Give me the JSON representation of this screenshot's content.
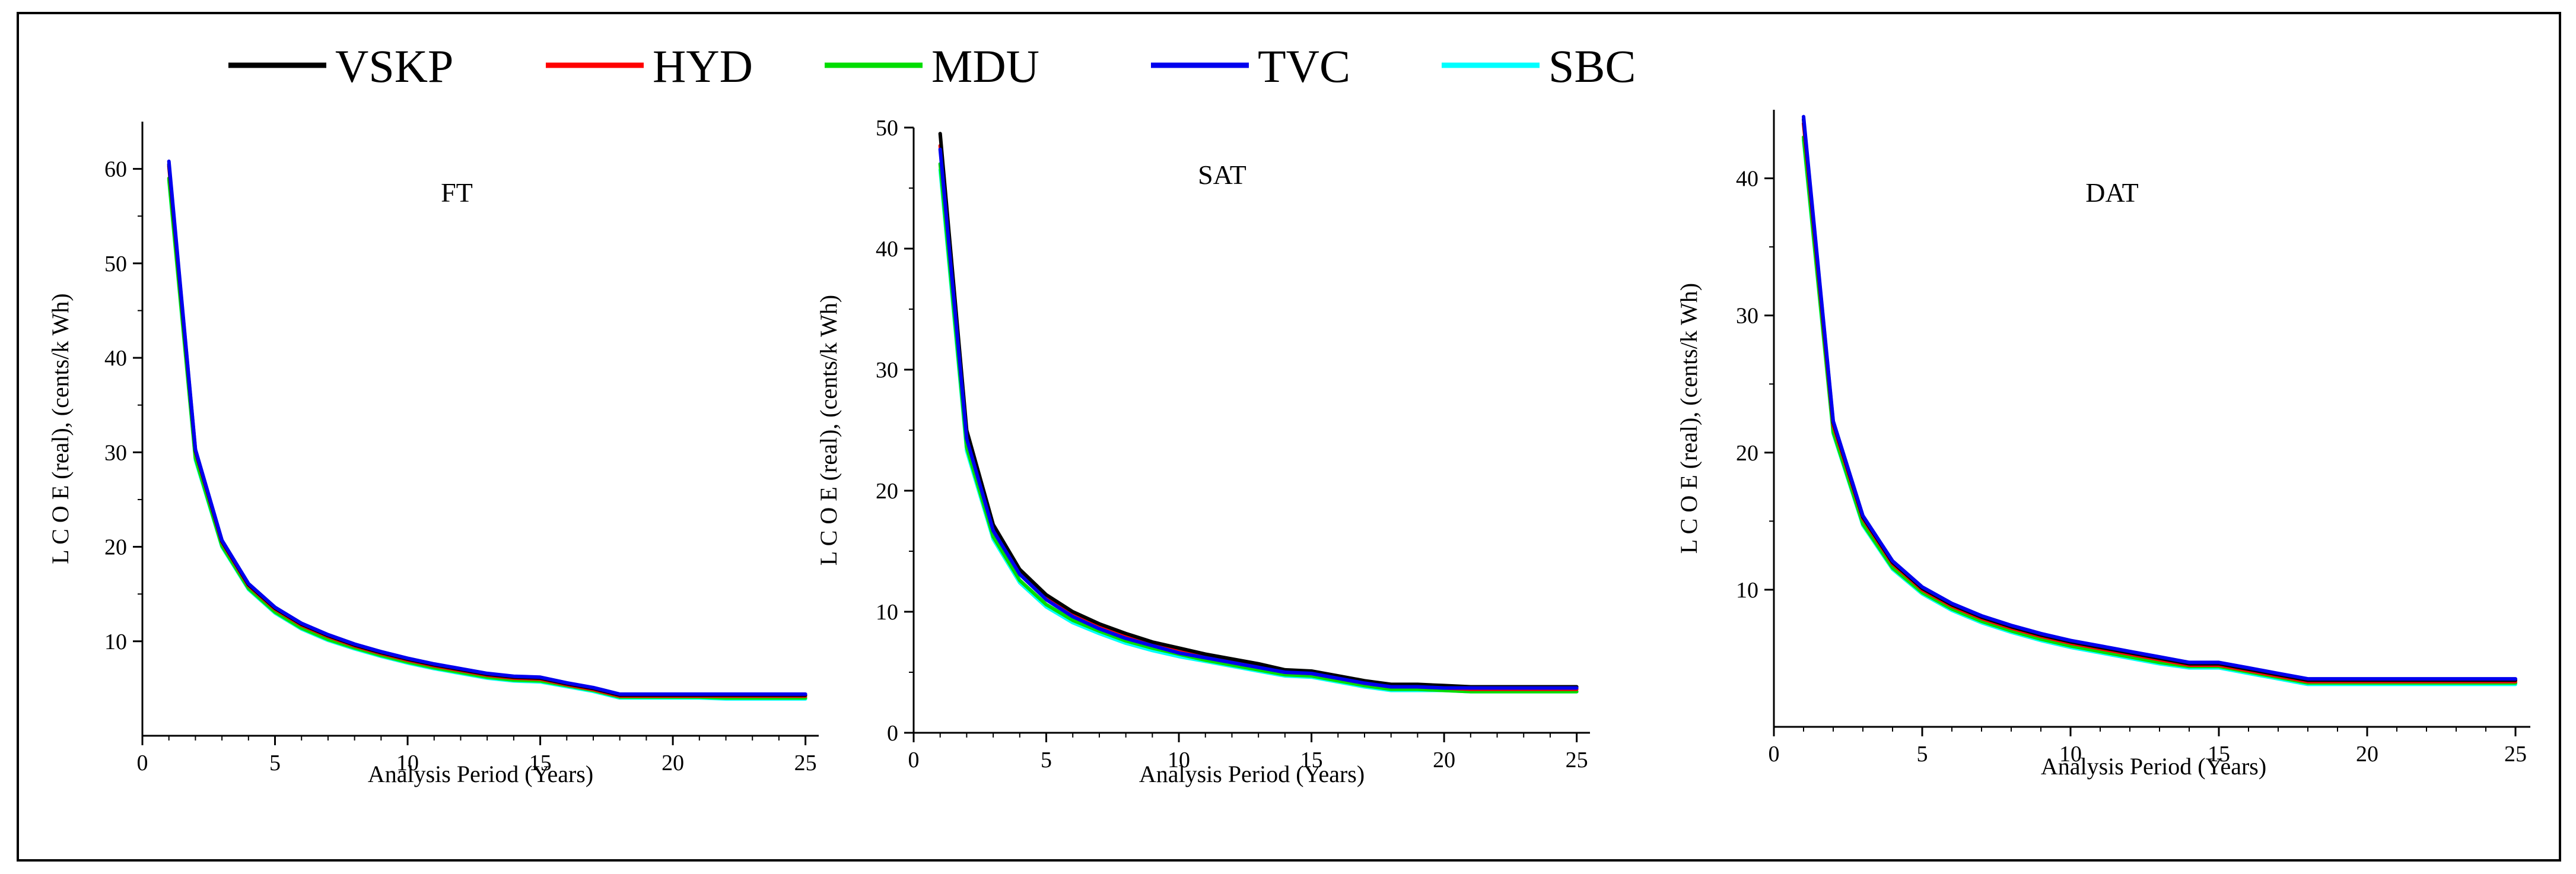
{
  "legend": [
    {
      "name": "VSKP",
      "color": "#000000"
    },
    {
      "name": "HYD",
      "color": "#ff0000"
    },
    {
      "name": "MDU",
      "color": "#00dd00"
    },
    {
      "name": "TVC",
      "color": "#0000ee"
    },
    {
      "name": "SBC",
      "color": "#00ffff"
    }
  ],
  "chart_data": [
    {
      "type": "line",
      "title": "FT",
      "xlabel": "Analysis Period (Years)",
      "ylabel": "L C O E (real),  (cents/k Wh)",
      "xlim": [
        0,
        25.5
      ],
      "ylim": [
        0,
        65
      ],
      "xticks": [
        0,
        5,
        10,
        15,
        20,
        25
      ],
      "yticks": [
        10,
        20,
        30,
        40,
        50,
        60
      ],
      "x": [
        1,
        2,
        3,
        4,
        5,
        6,
        7,
        8,
        9,
        10,
        11,
        12,
        13,
        14,
        15,
        16,
        17,
        18,
        19,
        20,
        21,
        22,
        23,
        24,
        25
      ],
      "series": [
        {
          "name": "VSKP",
          "values": [
            60.5,
            30.2,
            20.6,
            16.0,
            13.5,
            11.8,
            10.6,
            9.6,
            8.8,
            8.1,
            7.5,
            7.0,
            6.5,
            6.2,
            6.1,
            5.5,
            5.0,
            4.3,
            4.3,
            4.3,
            4.3,
            4.3,
            4.3,
            4.3,
            4.3
          ]
        },
        {
          "name": "HYD",
          "values": [
            60.3,
            30.1,
            20.5,
            15.9,
            13.4,
            11.7,
            10.5,
            9.5,
            8.7,
            8.0,
            7.4,
            6.9,
            6.4,
            6.1,
            6.0,
            5.4,
            4.9,
            4.2,
            4.2,
            4.2,
            4.2,
            4.2,
            4.2,
            4.2,
            4.2
          ]
        },
        {
          "name": "MDU",
          "values": [
            59.0,
            29.4,
            20.1,
            15.6,
            13.1,
            11.4,
            10.2,
            9.3,
            8.5,
            7.8,
            7.2,
            6.7,
            6.2,
            5.9,
            5.8,
            5.3,
            4.8,
            4.1,
            4.1,
            4.1,
            4.1,
            4.0,
            4.0,
            4.0,
            4.0
          ]
        },
        {
          "name": "TVC",
          "values": [
            60.8,
            30.3,
            20.7,
            16.1,
            13.6,
            11.9,
            10.7,
            9.7,
            8.9,
            8.2,
            7.6,
            7.1,
            6.6,
            6.3,
            6.2,
            5.6,
            5.1,
            4.4,
            4.4,
            4.4,
            4.4,
            4.4,
            4.4,
            4.4,
            4.4
          ]
        },
        {
          "name": "SBC",
          "values": [
            58.8,
            29.2,
            20.0,
            15.5,
            13.0,
            11.3,
            10.1,
            9.2,
            8.4,
            7.7,
            7.1,
            6.6,
            6.1,
            5.8,
            5.7,
            5.2,
            4.7,
            4.0,
            4.0,
            4.0,
            4.0,
            3.9,
            3.9,
            3.9,
            3.9
          ]
        }
      ]
    },
    {
      "type": "line",
      "title": "SAT",
      "xlabel": "Analysis Period (Years)",
      "ylabel": "L C O E (real),  (cents/k Wh)",
      "xlim": [
        0,
        25.5
      ],
      "ylim": [
        0,
        50
      ],
      "xticks": [
        0,
        5,
        10,
        15,
        20,
        25
      ],
      "yticks": [
        0,
        10,
        20,
        30,
        40,
        50
      ],
      "x": [
        1,
        2,
        3,
        4,
        5,
        6,
        7,
        8,
        9,
        10,
        11,
        12,
        13,
        14,
        15,
        16,
        17,
        18,
        19,
        20,
        21,
        22,
        23,
        24,
        25
      ],
      "series": [
        {
          "name": "VSKP",
          "values": [
            49.5,
            25.0,
            17.2,
            13.5,
            11.4,
            10.0,
            9.0,
            8.2,
            7.5,
            7.0,
            6.5,
            6.1,
            5.7,
            5.2,
            5.1,
            4.7,
            4.3,
            4.0,
            4.0,
            3.9,
            3.8,
            3.8,
            3.8,
            3.8,
            3.8
          ]
        },
        {
          "name": "HYD",
          "values": [
            48.5,
            24.5,
            16.8,
            13.2,
            11.1,
            9.7,
            8.7,
            7.9,
            7.3,
            6.7,
            6.3,
            5.9,
            5.5,
            5.0,
            4.9,
            4.5,
            4.1,
            3.8,
            3.8,
            3.7,
            3.6,
            3.6,
            3.6,
            3.6,
            3.6
          ]
        },
        {
          "name": "MDU",
          "values": [
            47.0,
            23.6,
            16.2,
            12.6,
            10.6,
            9.3,
            8.4,
            7.6,
            7.0,
            6.5,
            6.0,
            5.6,
            5.2,
            4.8,
            4.7,
            4.3,
            3.9,
            3.6,
            3.6,
            3.5,
            3.4,
            3.4,
            3.4,
            3.4,
            3.4
          ]
        },
        {
          "name": "TVC",
          "values": [
            48.2,
            24.3,
            16.7,
            13.1,
            11.0,
            9.6,
            8.6,
            7.8,
            7.2,
            6.6,
            6.2,
            5.8,
            5.4,
            5.0,
            4.9,
            4.5,
            4.1,
            3.8,
            3.8,
            3.7,
            3.7,
            3.7,
            3.7,
            3.7,
            3.7
          ]
        },
        {
          "name": "SBC",
          "values": [
            46.5,
            23.3,
            16.0,
            12.4,
            10.4,
            9.1,
            8.2,
            7.4,
            6.8,
            6.3,
            5.9,
            5.5,
            5.1,
            4.7,
            4.6,
            4.2,
            3.8,
            3.5,
            3.5,
            3.5,
            3.4,
            3.4,
            3.4,
            3.4,
            3.4
          ]
        }
      ]
    },
    {
      "type": "line",
      "title": "DAT",
      "xlabel": "Analysis Period (Years)",
      "ylabel": "L C O E (real),  (cents/k Wh)",
      "xlim": [
        0,
        25.5
      ],
      "ylim": [
        0,
        45
      ],
      "xticks": [
        0,
        5,
        10,
        15,
        20,
        25
      ],
      "yticks": [
        10,
        20,
        30,
        40
      ],
      "x": [
        1,
        2,
        3,
        4,
        5,
        6,
        7,
        8,
        9,
        10,
        11,
        12,
        13,
        14,
        15,
        16,
        17,
        18,
        19,
        20,
        21,
        22,
        23,
        24,
        25
      ],
      "series": [
        {
          "name": "VSKP",
          "values": [
            44.3,
            22.2,
            15.3,
            12.0,
            10.1,
            8.9,
            8.0,
            7.3,
            6.7,
            6.2,
            5.8,
            5.4,
            5.0,
            4.6,
            4.6,
            4.2,
            3.8,
            3.4,
            3.4,
            3.4,
            3.4,
            3.4,
            3.4,
            3.4,
            3.4
          ]
        },
        {
          "name": "HYD",
          "values": [
            44.0,
            22.0,
            15.2,
            11.9,
            10.0,
            8.8,
            7.9,
            7.2,
            6.6,
            6.1,
            5.7,
            5.3,
            4.9,
            4.5,
            4.5,
            4.1,
            3.7,
            3.3,
            3.3,
            3.3,
            3.3,
            3.3,
            3.3,
            3.3,
            3.3
          ]
        },
        {
          "name": "MDU",
          "values": [
            43.0,
            21.5,
            14.8,
            11.6,
            9.8,
            8.6,
            7.7,
            7.0,
            6.4,
            5.9,
            5.5,
            5.1,
            4.7,
            4.4,
            4.4,
            4.0,
            3.6,
            3.2,
            3.2,
            3.2,
            3.2,
            3.2,
            3.2,
            3.2,
            3.2
          ]
        },
        {
          "name": "TVC",
          "values": [
            44.5,
            22.3,
            15.4,
            12.1,
            10.2,
            9.0,
            8.1,
            7.4,
            6.8,
            6.3,
            5.9,
            5.5,
            5.1,
            4.7,
            4.7,
            4.3,
            3.9,
            3.5,
            3.5,
            3.5,
            3.5,
            3.5,
            3.5,
            3.5,
            3.5
          ]
        },
        {
          "name": "SBC",
          "values": [
            42.8,
            21.4,
            14.7,
            11.5,
            9.7,
            8.5,
            7.6,
            6.9,
            6.3,
            5.8,
            5.4,
            5.0,
            4.6,
            4.3,
            4.3,
            3.9,
            3.5,
            3.1,
            3.1,
            3.1,
            3.1,
            3.1,
            3.1,
            3.1,
            3.1
          ]
        }
      ]
    }
  ]
}
